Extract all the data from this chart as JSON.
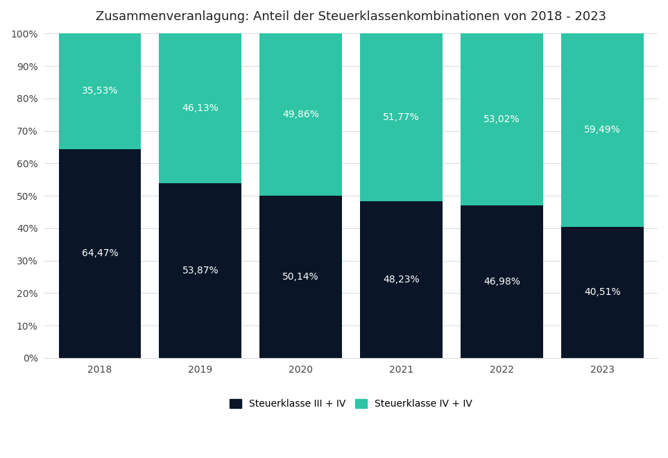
{
  "title": "Zusammenveranlagung: Anteil der Steuerklassenkombinationen von 2018 - 2023",
  "years": [
    "2018",
    "2019",
    "2020",
    "2021",
    "2022",
    "2023"
  ],
  "steuerklasse_III_IV": [
    64.47,
    53.87,
    50.14,
    48.23,
    46.98,
    40.51
  ],
  "steuerklasse_IV_IV": [
    35.53,
    46.13,
    49.86,
    51.77,
    53.02,
    59.49
  ],
  "color_III_IV": "#0A1628",
  "color_IV_IV": "#2EC4A5",
  "label_III_IV": "Steuerklasse III + IV",
  "label_IV_IV": "Steuerklasse IV + IV",
  "background_color": "#ffffff",
  "text_color_white": "#ffffff",
  "ytick_labels": [
    "0%",
    "10%",
    "20%",
    "30%",
    "40%",
    "50%",
    "60%",
    "70%",
    "80%",
    "90%",
    "100%"
  ],
  "ytick_values": [
    0,
    10,
    20,
    30,
    40,
    50,
    60,
    70,
    80,
    90,
    100
  ],
  "bar_width": 0.82,
  "title_fontsize": 13,
  "label_fontsize": 10,
  "tick_fontsize": 10,
  "legend_fontsize": 10,
  "grid_color": "#dddddd"
}
